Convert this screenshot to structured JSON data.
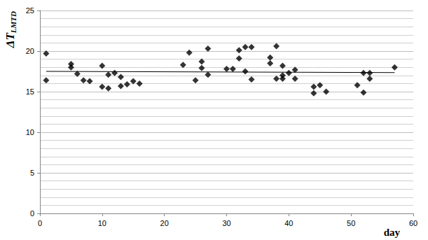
{
  "chart_data": {
    "type": "scatter",
    "ylabel": "ΔTLMTD",
    "xlabel": "day",
    "xlim": [
      0,
      60
    ],
    "xticks": [
      0,
      10,
      20,
      30,
      40,
      50,
      60
    ],
    "ylim": [
      0,
      25
    ],
    "yticks": [
      0,
      5,
      10,
      15,
      20,
      25
    ],
    "grid": true,
    "series": [
      {
        "type": "scatter",
        "marker": "diamond",
        "color": "#000000",
        "x": [
          1,
          1,
          5,
          5,
          6,
          7,
          8,
          10,
          10,
          11,
          11,
          12,
          13,
          13,
          14,
          15,
          16,
          23,
          24,
          25,
          26,
          26,
          27,
          27,
          30,
          31,
          32,
          32,
          33,
          33,
          34,
          34,
          37,
          37,
          38,
          38,
          39,
          39,
          39,
          40,
          41,
          41,
          44,
          44,
          45,
          46,
          51,
          52,
          52,
          53,
          53,
          57
        ],
        "values": [
          19.7,
          16.4,
          18.4,
          18.0,
          17.2,
          16.4,
          16.3,
          18.2,
          15.6,
          17.1,
          15.4,
          17.3,
          16.8,
          15.7,
          15.9,
          16.3,
          16.0,
          18.3,
          19.8,
          16.4,
          18.7,
          17.9,
          20.3,
          17.1,
          17.8,
          17.8,
          20.1,
          19.1,
          20.5,
          17.5,
          20.5,
          16.5,
          19.2,
          18.5,
          20.6,
          16.6,
          18.2,
          17.0,
          16.6,
          17.3,
          17.7,
          16.6,
          15.6,
          14.8,
          15.8,
          15.0,
          15.8,
          17.3,
          14.9,
          17.3,
          16.6,
          18.0
        ]
      },
      {
        "type": "line",
        "line_style": "solid",
        "color": "#000000",
        "x": [
          1,
          57
        ],
        "values": [
          17.5,
          17.35
        ]
      }
    ]
  }
}
